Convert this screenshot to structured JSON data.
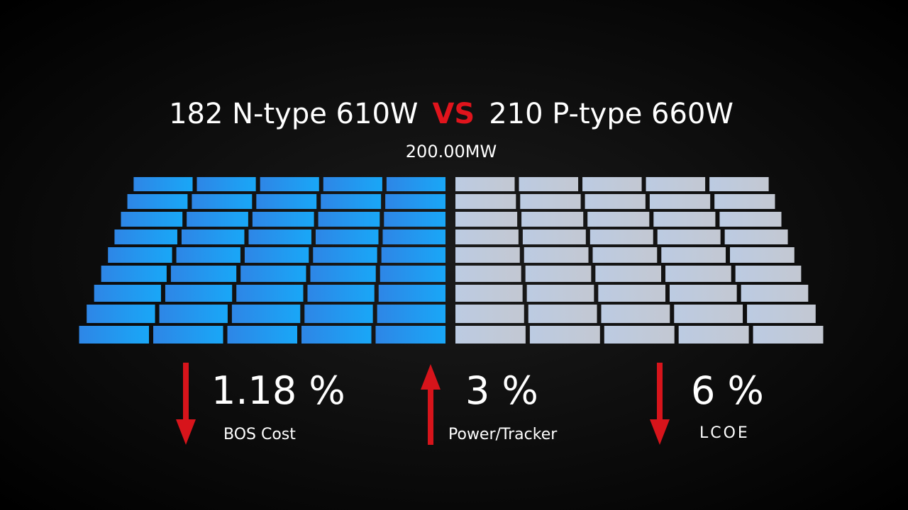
{
  "header": {
    "left": "182 N-type 610W",
    "vs": "VS",
    "right": "210 P-type 660W",
    "subtitle": "200.00MW"
  },
  "metrics": [
    {
      "value": "1.18 %",
      "label": "BOS Cost"
    },
    {
      "value": "3 %",
      "label": "Power/Tracker"
    },
    {
      "value": "6 %",
      "label": "LCOE"
    }
  ]
}
